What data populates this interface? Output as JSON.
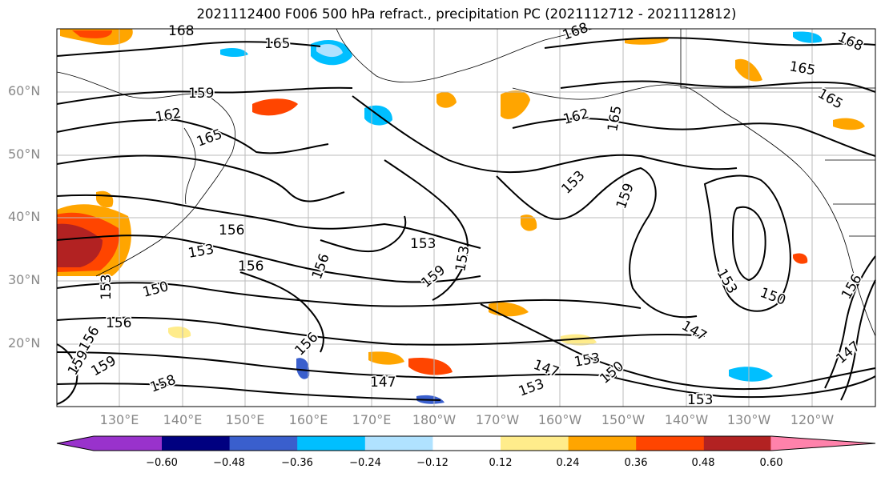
{
  "title": "2021112400 F006 500 hPa refract., precipitation PC (2021112712 - 2021112812)",
  "lat_labels": [
    "60°N",
    "50°N",
    "40°N",
    "30°N",
    "20°N"
  ],
  "lon_labels": [
    "130°E",
    "140°E",
    "150°E",
    "160°E",
    "170°E",
    "180°W",
    "170°W",
    "160°W",
    "150°W",
    "140°W",
    "130°W",
    "120°W"
  ],
  "colorbar": {
    "ticks": [
      "−0.60",
      "−0.48",
      "−0.36",
      "−0.24",
      "−0.12",
      "0.12",
      "0.24",
      "0.36",
      "0.48",
      "0.60"
    ],
    "colors": [
      "#9932cc",
      "#000080",
      "#3a5fcd",
      "#00bfff",
      "#b0e2ff",
      "#ffffff",
      "#ffec8b",
      "#ffa500",
      "#ff4500",
      "#b22222",
      "#ff82ab"
    ]
  },
  "contour_labels": [
    "168",
    "165",
    "168",
    "168",
    "165",
    "165",
    "159",
    "162",
    "165",
    "162",
    "165",
    "156",
    "153",
    "156",
    "150",
    "153",
    "156",
    "156",
    "153",
    "159",
    "153",
    "153",
    "159",
    "153",
    "150",
    "156",
    "147",
    "147",
    "147",
    "153",
    "150",
    "153",
    "158",
    "147",
    "156",
    "153",
    "159",
    "156",
    "159"
  ]
}
